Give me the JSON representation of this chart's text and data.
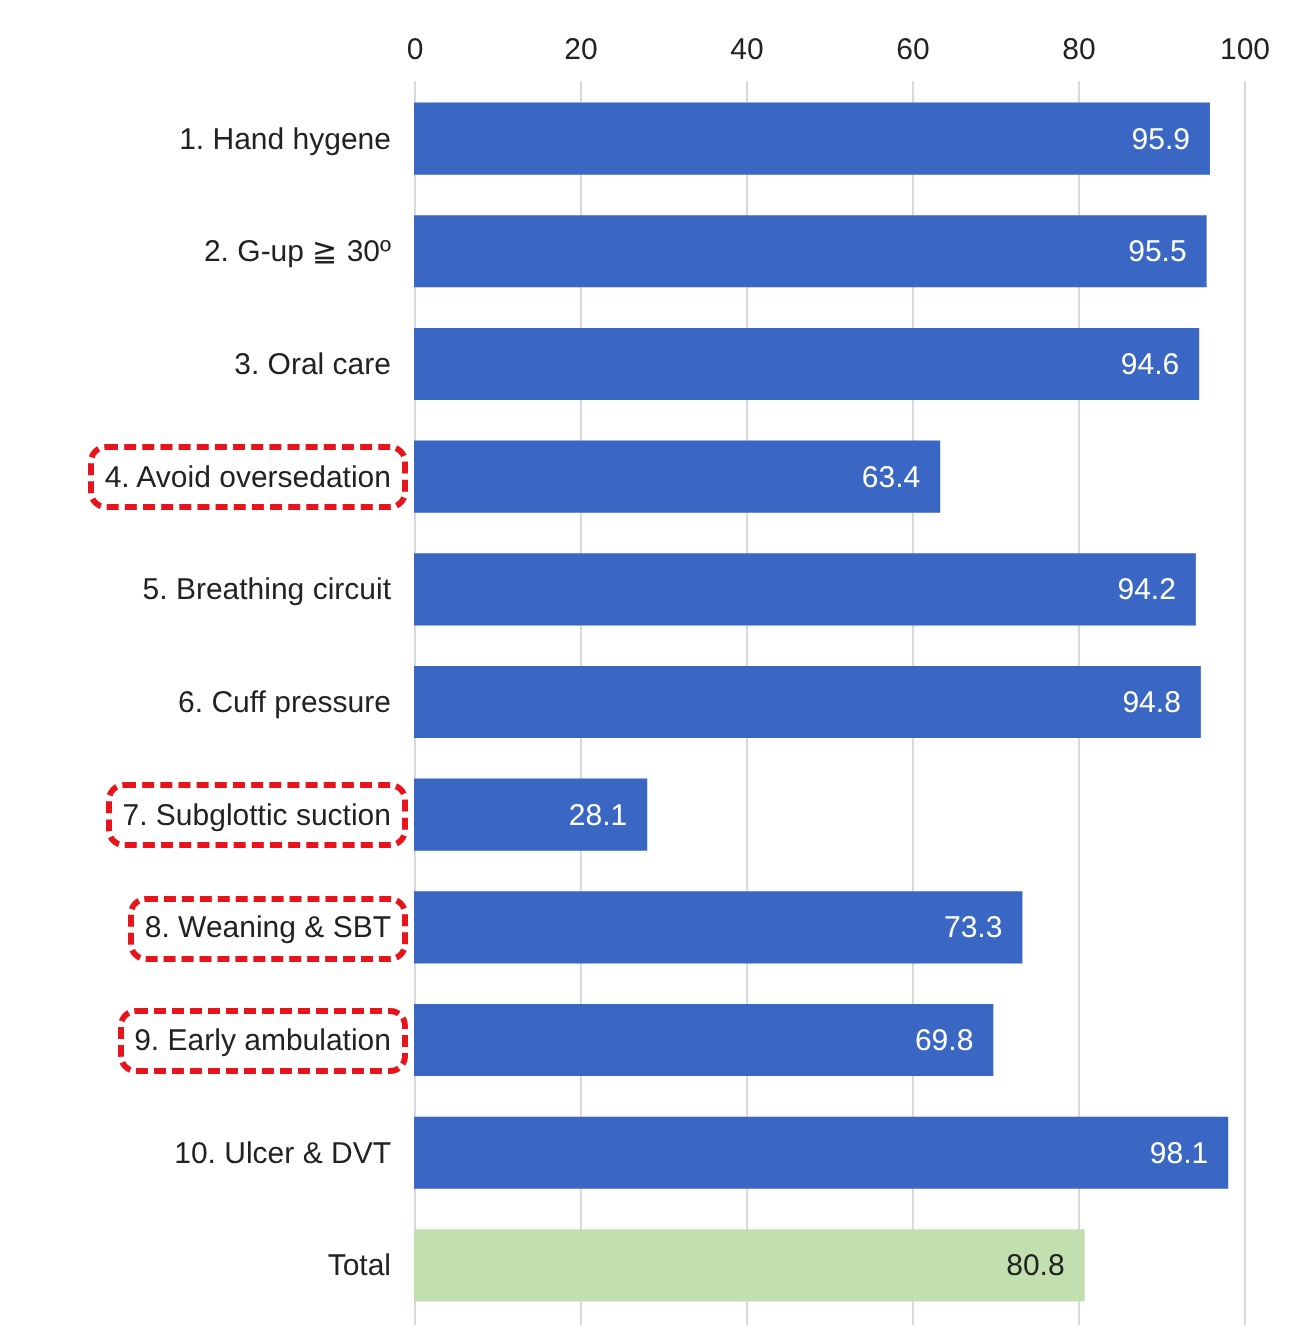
{
  "chart_data": {
    "type": "bar",
    "orientation": "horizontal",
    "categories": [
      "1. Hand hygene",
      "2. G-up ≧ 30º",
      "3. Oral care",
      "4. Avoid oversedation",
      "5. Breathing circuit",
      "6. Cuff pressure",
      "7. Subglottic suction",
      "8. Weaning & SBT",
      "9. Early ambulation",
      "10. Ulcer & DVT",
      "Total"
    ],
    "values": [
      95.9,
      95.5,
      94.6,
      63.4,
      94.2,
      94.8,
      28.1,
      73.3,
      69.8,
      98.1,
      80.8
    ],
    "colors": [
      "#3a66c4",
      "#3a66c4",
      "#3a66c4",
      "#3a66c4",
      "#3a66c4",
      "#3a66c4",
      "#3a66c4",
      "#3a66c4",
      "#3a66c4",
      "#3a66c4",
      "#c2dfb0"
    ],
    "xlim": [
      0,
      100
    ],
    "xticks": [
      0,
      20,
      40,
      60,
      80,
      100
    ],
    "grid": "x",
    "data_labels": true
  }
}
